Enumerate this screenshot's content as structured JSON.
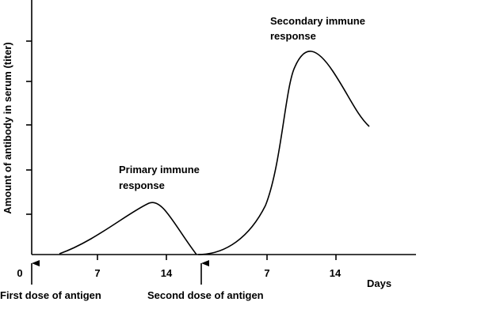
{
  "y_axis_label": "Amount of antibody in serum (titer)",
  "x_tick_labels": [
    "0",
    "7",
    "14",
    "7",
    "14"
  ],
  "x_axis_unit": "Days",
  "events": [
    "First dose of antigen",
    "Second dose of antigen"
  ],
  "primary_label": [
    "Primary immune",
    "response"
  ],
  "secondary_label": [
    "Secondary immune",
    "response"
  ]
}
